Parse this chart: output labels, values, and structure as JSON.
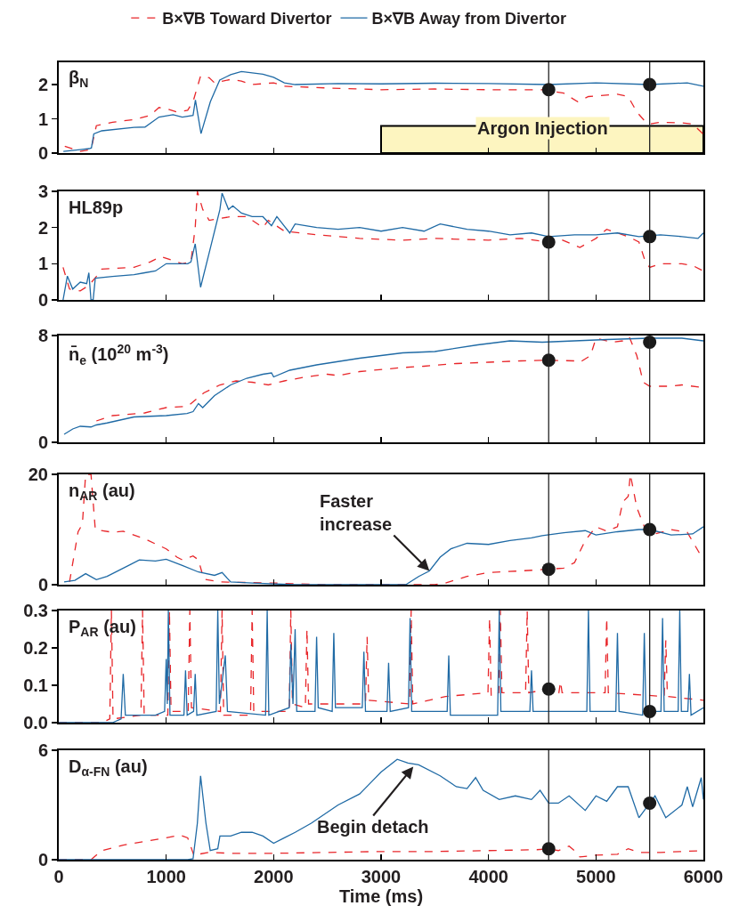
{
  "chart_data": [
    {
      "type": "line",
      "ylabel": "β$_{N}$",
      "legend": "top",
      "tick_labels": "y",
      "xlim": [
        0,
        6000
      ],
      "xticks": [
        0,
        1000,
        2000,
        3000,
        4000,
        5000,
        6000
      ],
      "ylim": [
        0,
        2.65
      ],
      "yticks": [
        0,
        1,
        2
      ],
      "series": [
        {
          "name": "B×∇B Toward Divertor",
          "color": "#e8262a",
          "line_style": "dashed",
          "x": [
            56,
            200,
            300,
            350,
            500,
            700,
            850,
            933,
            1000,
            1100,
            1200,
            1250,
            1320,
            1400,
            1450,
            1600,
            1700,
            1800,
            2000,
            2100,
            2500,
            3000,
            3500,
            4000,
            4500,
            4700,
            4830,
            4930,
            5200,
            5300,
            5380,
            5450,
            5500,
            5600,
            5800,
            5900,
            6000
          ],
          "values": [
            0.2,
            0.05,
            0.1,
            0.8,
            0.9,
            0.98,
            1.1,
            1.33,
            1.3,
            1.2,
            1.25,
            1.5,
            2.25,
            2.2,
            2.05,
            2.15,
            2.1,
            2.0,
            2.05,
            1.95,
            1.9,
            1.85,
            1.87,
            1.85,
            1.85,
            1.75,
            1.5,
            1.65,
            1.72,
            1.65,
            1.2,
            0.95,
            0.85,
            0.9,
            0.88,
            0.85,
            0.55
          ]
        },
        {
          "name": "B×∇B Away from Divertor",
          "color": "#1f6aa5",
          "line_style": "solid",
          "x": [
            43,
            200,
            282,
            304,
            326,
            400,
            700,
            803,
            933,
            1064,
            1150,
            1250,
            1272,
            1324,
            1411,
            1498,
            1600,
            1700,
            1900,
            2000,
            2100,
            2200,
            2600,
            3000,
            3500,
            4000,
            4560,
            5000,
            5500,
            5850,
            6000
          ],
          "values": [
            0.05,
            0.1,
            0.13,
            0.15,
            0.56,
            0.65,
            0.75,
            0.76,
            1.05,
            1.12,
            1.05,
            1.1,
            1.55,
            0.57,
            1.5,
            2.13,
            2.29,
            2.38,
            2.3,
            2.21,
            2.05,
            2.0,
            2.03,
            2.02,
            2.04,
            2.03,
            2.0,
            2.05,
            2.0,
            2.05,
            1.95
          ]
        },
        {
          "type": "scatter",
          "marker": "circle",
          "color": "#1a1a1a",
          "x": [
            4560,
            5500
          ],
          "values": [
            1.85,
            2.0
          ]
        }
      ],
      "ref_lines": [
        {
          "axis": "x",
          "value": 4560,
          "color": "#222222"
        },
        {
          "axis": "x",
          "value": 5500,
          "color": "#222222"
        }
      ],
      "bands": [
        {
          "axis": "x",
          "from": 3000,
          "to": 6000,
          "label": "Argon Injection",
          "color": "#fdf5c0"
        }
      ]
    },
    {
      "type": "line",
      "ylabel": "HL89p",
      "tick_labels": "y",
      "xlim": [
        0,
        6000
      ],
      "xticks": [
        0,
        1000,
        2000,
        3000,
        4000,
        5000,
        6000
      ],
      "ylim": [
        0,
        3
      ],
      "yticks": [
        0,
        1,
        2,
        3
      ],
      "series": [
        {
          "color": "#e8262a",
          "line_style": "dashed",
          "x": [
            40,
            100,
            200,
            280,
            350,
            400,
            700,
            850,
            950,
            1050,
            1150,
            1230,
            1270,
            1290,
            1340,
            1400,
            1600,
            1750,
            1900,
            1950,
            2100,
            2400,
            2800,
            3200,
            3500,
            4000,
            4300,
            4560,
            4650,
            4850,
            5000,
            5100,
            5300,
            5400,
            5460,
            5500,
            5600,
            5800,
            5900,
            6000
          ],
          "values": [
            0.9,
            0.3,
            0.25,
            0.4,
            0.65,
            0.85,
            0.9,
            1.05,
            1.2,
            1.1,
            1.0,
            1.05,
            2.0,
            3.0,
            2.5,
            2.2,
            2.3,
            2.3,
            2.0,
            2.2,
            1.9,
            1.8,
            1.7,
            1.65,
            1.7,
            1.65,
            1.7,
            1.6,
            1.7,
            1.45,
            1.7,
            1.95,
            1.75,
            1.6,
            1.05,
            0.9,
            1.0,
            1.0,
            0.95,
            0.8
          ]
        },
        {
          "color": "#1f6aa5",
          "line_style": "solid",
          "x": [
            40,
            80,
            130,
            200,
            260,
            280,
            300,
            320,
            340,
            500,
            700,
            800,
            900,
            1000,
            1200,
            1230,
            1270,
            1320,
            1400,
            1500,
            1520,
            1580,
            1620,
            1700,
            1800,
            1900,
            1980,
            2030,
            2150,
            2200,
            2400,
            2600,
            2800,
            3000,
            3200,
            3400,
            3550,
            3800,
            4000,
            4200,
            4400,
            4560,
            4800,
            5000,
            5200,
            5400,
            5600,
            5800,
            5950,
            6000
          ],
          "values": [
            0,
            0.66,
            0.3,
            0.49,
            0.45,
            0.75,
            0,
            0,
            0.6,
            0.65,
            0.7,
            0.75,
            0.8,
            1.0,
            1.0,
            1.05,
            1.55,
            0.35,
            1.3,
            2.5,
            2.95,
            2.5,
            2.6,
            2.4,
            2.3,
            2.3,
            2.05,
            2.3,
            1.85,
            2.1,
            2.0,
            1.95,
            2.0,
            1.9,
            2.0,
            1.9,
            2.1,
            1.95,
            1.9,
            1.8,
            1.85,
            1.75,
            1.8,
            1.8,
            1.85,
            1.75,
            1.8,
            1.75,
            1.7,
            1.85
          ]
        },
        {
          "type": "scatter",
          "marker": "circle",
          "color": "#1a1a1a",
          "x": [
            4560,
            5500
          ],
          "values": [
            1.6,
            1.75
          ]
        }
      ],
      "ref_lines": [
        {
          "axis": "x",
          "value": 4560,
          "color": "#222222"
        },
        {
          "axis": "x",
          "value": 5500,
          "color": "#222222"
        }
      ]
    },
    {
      "type": "line",
      "ylabel": "n̄$_{e}$ (10$^{20}$ m$^{-3}$)",
      "tick_labels": "y",
      "xlim": [
        0,
        6000
      ],
      "xticks": [
        0,
        1000,
        2000,
        3000,
        4000,
        5000,
        6000
      ],
      "ylim": [
        0,
        8
      ],
      "yticks": [
        0,
        8
      ],
      "series": [
        {
          "color": "#e8262a",
          "line_style": "dashed",
          "x": [
            350,
            500,
            800,
            1000,
            1200,
            1350,
            1500,
            1650,
            1800,
            1950,
            2100,
            2300,
            2500,
            2600,
            2800,
            3200,
            3400,
            3700,
            4000,
            4300,
            4560,
            4800,
            4850,
            4950,
            5000,
            5150,
            5250,
            5310,
            5380,
            5440,
            5500,
            5700,
            5800,
            6000
          ],
          "values": [
            1.6,
            2.0,
            2.2,
            2.6,
            2.7,
            3.7,
            4.3,
            4.6,
            4.5,
            4.3,
            4.6,
            4.9,
            5.1,
            5.0,
            5.3,
            5.6,
            5.7,
            5.9,
            6.0,
            6.1,
            6.15,
            6.1,
            6.0,
            6.5,
            7.8,
            7.5,
            7.6,
            7.9,
            6.5,
            4.5,
            4.2,
            4.2,
            4.3,
            4.1
          ]
        },
        {
          "color": "#1f6aa5",
          "line_style": "solid",
          "x": [
            50,
            130,
            200,
            300,
            350,
            450,
            700,
            1000,
            1194,
            1250,
            1300,
            1340,
            1450,
            1600,
            1750,
            1900,
            1980,
            2000,
            2150,
            2400,
            2800,
            3200,
            3500,
            3900,
            4200,
            4500,
            4800,
            5100,
            5500,
            5800,
            6000
          ],
          "values": [
            0.6,
            1.0,
            1.2,
            1.15,
            1.3,
            1.45,
            1.9,
            2.0,
            2.16,
            2.3,
            2.9,
            2.6,
            3.5,
            4.3,
            4.8,
            5.1,
            5.2,
            4.9,
            5.4,
            5.8,
            6.3,
            6.7,
            6.8,
            7.3,
            7.6,
            7.5,
            7.6,
            7.7,
            7.8,
            7.8,
            7.6
          ]
        },
        {
          "type": "scatter",
          "marker": "circle",
          "color": "#1a1a1a",
          "x": [
            4560,
            5500
          ],
          "values": [
            6.15,
            7.5
          ]
        }
      ],
      "ref_lines": [
        {
          "axis": "x",
          "value": 4560,
          "color": "#222222"
        },
        {
          "axis": "x",
          "value": 5500,
          "color": "#222222"
        }
      ]
    },
    {
      "type": "line",
      "ylabel": "n$_{AR}$ (au)",
      "tick_labels": "y",
      "xlim": [
        0,
        6000
      ],
      "xticks": [
        0,
        1000,
        2000,
        3000,
        4000,
        5000,
        6000
      ],
      "ylim": [
        0,
        20
      ],
      "yticks": [
        0,
        20
      ],
      "series": [
        {
          "color": "#e8262a",
          "line_style": "dashed",
          "x": [
            100,
            180,
            220,
            250,
            300,
            340,
            500,
            600,
            800,
            1000,
            1100,
            1150,
            1250,
            1300,
            1350,
            1500,
            2000,
            2500,
            3300,
            3500,
            3600,
            3800,
            4000,
            4300,
            4560,
            4700,
            4800,
            4900,
            5000,
            5100,
            5200,
            5250,
            5300,
            5320,
            5380,
            5450,
            5550,
            5700,
            5850,
            6000
          ],
          "values": [
            0.5,
            9.6,
            11,
            20,
            20,
            10,
            9.5,
            9.7,
            8.3,
            6.5,
            5.0,
            4.5,
            5.2,
            4.5,
            1.0,
            0.5,
            0.3,
            0,
            0,
            0,
            0.3,
            1.5,
            2.2,
            2.5,
            2.8,
            3.0,
            4.0,
            8,
            10.5,
            9.7,
            10.5,
            15,
            16,
            20,
            14,
            10.5,
            9.2,
            10,
            9.5,
            4.5
          ]
        },
        {
          "color": "#1f6aa5",
          "line_style": "solid",
          "x": [
            50,
            150,
            250,
            350,
            450,
            650,
            750,
            900,
            1000,
            1150,
            1300,
            1450,
            1520,
            1600,
            1800,
            2200,
            3230,
            3350,
            3450,
            3550,
            3650,
            3800,
            4000,
            4200,
            4400,
            4500,
            4700,
            4900,
            5000,
            5200,
            5400,
            5500,
            5700,
            5900,
            6000
          ],
          "values": [
            0.5,
            0.8,
            2.0,
            0.9,
            1.5,
            3.5,
            4.5,
            4.3,
            4.6,
            3.5,
            2.3,
            1.7,
            2.2,
            0.5,
            0.3,
            0,
            0,
            1.5,
            2.5,
            5,
            6.5,
            7.5,
            7.3,
            8.0,
            8.5,
            8.9,
            9.4,
            9.8,
            9.0,
            9.6,
            10,
            10,
            9.0,
            9.2,
            10.5
          ]
        },
        {
          "type": "scatter",
          "marker": "circle",
          "color": "#1a1a1a",
          "x": [
            4560,
            5500
          ],
          "values": [
            2.8,
            10
          ]
        }
      ],
      "ref_lines": [
        {
          "axis": "x",
          "value": 4560,
          "color": "#222222"
        },
        {
          "axis": "x",
          "value": 5500,
          "color": "#222222"
        }
      ],
      "annotations": [
        {
          "text": "Faster\nincrease",
          "x": 3450,
          "y": 2.5
        }
      ]
    },
    {
      "type": "line",
      "ylabel": "P$_{AR}$ (au)",
      "tick_labels": "y",
      "xlim": [
        0,
        6000
      ],
      "xticks": [
        0,
        1000,
        2000,
        3000,
        4000,
        5000,
        6000
      ],
      "ylim": [
        0,
        0.3
      ],
      "yticks": [
        {
          "value": 0,
          "label": "0.0"
        },
        {
          "value": 0.1,
          "label": "0.1"
        },
        {
          "value": 0.2,
          "label": "0.2"
        },
        {
          "value": 0.3,
          "label": "0.3"
        }
      ],
      "series": [
        {
          "color": "#e8262a",
          "line_style": "dashed",
          "x": [
            0,
            400,
            475,
            490,
            505,
            765,
            780,
            795,
            1015,
            1030,
            1045,
            1205,
            1220,
            1235,
            1505,
            1520,
            1535,
            1785,
            1800,
            1815,
            2145,
            2160,
            2175,
            2295,
            2310,
            2325,
            2855,
            2870,
            2885,
            3265,
            3280,
            3295,
            3600,
            3995,
            4010,
            4025,
            4095,
            4110,
            4125,
            4345,
            4360,
            4375,
            4560,
            4655,
            4670,
            4685,
            5085,
            5100,
            5115,
            5635,
            5650,
            5665,
            6000
          ],
          "values": [
            0,
            0,
            0.01,
            0.3,
            0.01,
            0.02,
            0.3,
            0.02,
            0.02,
            0.3,
            0.03,
            0.03,
            0.3,
            0.04,
            0.03,
            0.3,
            0.02,
            0.02,
            0.3,
            0.03,
            0.03,
            0.3,
            0.05,
            0.04,
            0.25,
            0.05,
            0.05,
            0.23,
            0.06,
            0.05,
            0.3,
            0.05,
            0.07,
            0.08,
            0.28,
            0.07,
            0.08,
            0.3,
            0.08,
            0.08,
            0.3,
            0.08,
            0.09,
            0.08,
            0.11,
            0.08,
            0.08,
            0.28,
            0.08,
            0.07,
            0.22,
            0.07,
            0.06
          ]
        },
        {
          "color": "#1f6aa5",
          "line_style": "solid",
          "x": [
            0,
            500,
            580,
            600,
            620,
            900,
            985,
            1000,
            1010,
            1020,
            1035,
            1165,
            1180,
            1195,
            1255,
            1270,
            1285,
            1465,
            1480,
            1495,
            1550,
            1570,
            1925,
            1940,
            1955,
            2145,
            2160,
            2180,
            2200,
            2215,
            2385,
            2400,
            2415,
            2545,
            2560,
            2575,
            2825,
            2840,
            2855,
            3055,
            3070,
            3085,
            3255,
            3270,
            3285,
            3615,
            3630,
            3645,
            4085,
            4100,
            4115,
            4385,
            4400,
            4415,
            4915,
            4930,
            4945,
            5185,
            5200,
            5215,
            5435,
            5450,
            5465,
            5605,
            5620,
            5635,
            5765,
            5780,
            5795,
            5855,
            5870,
            5885,
            6000
          ],
          "values": [
            0,
            0,
            0.01,
            0.13,
            0.02,
            0.02,
            0.03,
            0.17,
            0.05,
            0.3,
            0.02,
            0.02,
            0.14,
            0.02,
            0.03,
            0.13,
            0.02,
            0.03,
            0.3,
            0.05,
            0.18,
            0.03,
            0.02,
            0.3,
            0.02,
            0.04,
            0.21,
            0.05,
            0.25,
            0.03,
            0.03,
            0.23,
            0.04,
            0.03,
            0.24,
            0.04,
            0.04,
            0.19,
            0.03,
            0.03,
            0.16,
            0.03,
            0.04,
            0.28,
            0.03,
            0.03,
            0.18,
            0.02,
            0.02,
            0.3,
            0.03,
            0.03,
            0.14,
            0.03,
            0.03,
            0.3,
            0.03,
            0.03,
            0.24,
            0.03,
            0.02,
            0.24,
            0.03,
            0.03,
            0.28,
            0.03,
            0.03,
            0.3,
            0.03,
            0.03,
            0.13,
            0.02,
            0.04
          ]
        },
        {
          "type": "scatter",
          "marker": "circle",
          "color": "#1a1a1a",
          "x": [
            4560,
            5500
          ],
          "values": [
            0.09,
            0.03
          ]
        }
      ],
      "ref_lines": [
        {
          "axis": "x",
          "value": 4560,
          "color": "#222222"
        },
        {
          "axis": "x",
          "value": 5500,
          "color": "#222222"
        }
      ]
    },
    {
      "type": "line",
      "ylabel": "D$_{α-FN}$ (au)",
      "xlabel": "Time (ms)",
      "xlim": [
        0,
        6000
      ],
      "xticks": [
        0,
        1000,
        2000,
        3000,
        4000,
        5000,
        6000
      ],
      "ylim": [
        0,
        6
      ],
      "yticks": [
        0,
        6
      ],
      "series": [
        {
          "color": "#e8262a",
          "line_style": "dashed",
          "x": [
            0,
            300,
            400,
            600,
            800,
            1000,
            1130,
            1200,
            1260,
            1300,
            1400,
            1600,
            2000,
            2500,
            3000,
            3500,
            4000,
            4450,
            4560,
            4650,
            4750,
            4800,
            4850,
            5000,
            5200,
            5300,
            5400,
            5600,
            6000
          ],
          "values": [
            0,
            0,
            0.5,
            0.8,
            1.0,
            1.2,
            1.35,
            1.2,
            0.2,
            0.3,
            0.4,
            0.35,
            0.35,
            0.4,
            0.45,
            0.45,
            0.5,
            0.55,
            0.6,
            0.5,
            0.75,
            0.5,
            0.15,
            0.25,
            0.3,
            0.6,
            0.4,
            0.4,
            0.5
          ]
        },
        {
          "color": "#1f6aa5",
          "line_style": "solid",
          "x": [
            0,
            1200,
            1250,
            1290,
            1320,
            1370,
            1410,
            1480,
            1500,
            1600,
            1700,
            1800,
            1900,
            2000,
            2100,
            2200,
            2350,
            2600,
            2800,
            2900,
            3000,
            3150,
            3250,
            3350,
            3550,
            3700,
            3800,
            3880,
            3950,
            4100,
            4250,
            4400,
            4480,
            4560,
            4650,
            4750,
            4900,
            5000,
            5100,
            5200,
            5300,
            5400,
            5550,
            5650,
            5800,
            5850,
            5900,
            5980,
            6000
          ],
          "values": [
            0,
            0,
            0.05,
            2.0,
            4.6,
            2.0,
            0.5,
            0.6,
            1.3,
            1.3,
            1.5,
            1.5,
            1.3,
            0.9,
            1.2,
            1.5,
            2.0,
            3.0,
            3.6,
            4.2,
            4.8,
            5.5,
            5.3,
            5.2,
            4.6,
            4.0,
            3.9,
            4.5,
            3.8,
            3.3,
            3.5,
            3.3,
            3.8,
            3.1,
            3.1,
            3.5,
            2.7,
            3.5,
            3.2,
            4.0,
            4.0,
            2.3,
            3.5,
            2.3,
            3.0,
            4.0,
            2.9,
            4.5,
            3.3
          ]
        },
        {
          "type": "scatter",
          "marker": "circle",
          "color": "#1a1a1a",
          "x": [
            4560,
            5500
          ],
          "values": [
            0.6,
            3.1
          ]
        }
      ],
      "ref_lines": [
        {
          "axis": "x",
          "value": 4560,
          "color": "#222222"
        },
        {
          "axis": "x",
          "value": 5500,
          "color": "#222222"
        }
      ],
      "annotations": [
        {
          "text": "Begin detach",
          "x": 3300,
          "y": 5.1
        }
      ]
    }
  ]
}
